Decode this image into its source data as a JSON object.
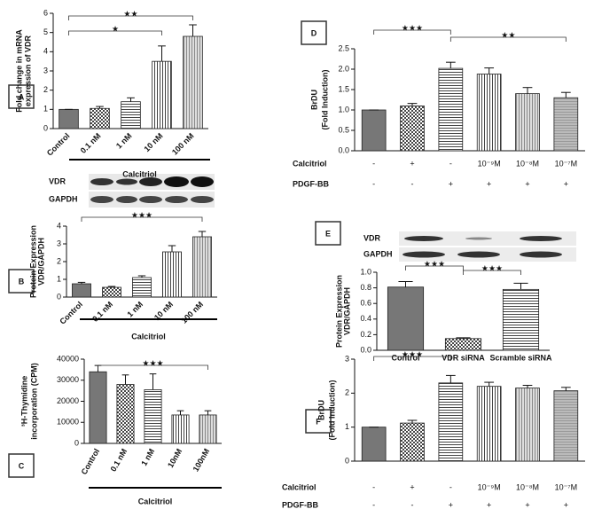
{
  "chart_data": [
    {
      "type": "bar",
      "label": "A",
      "ylabel": [
        "Fold change in mRNA",
        "expression of VDR"
      ],
      "xlabel": "Calcitriol",
      "categories": [
        "Control",
        "0.1 nM",
        "1 nM",
        "10 nM",
        "100 nM"
      ],
      "values": [
        1,
        1.05,
        1.4,
        3.5,
        4.8
      ],
      "errors": [
        0,
        0.1,
        0.2,
        0.8,
        0.6
      ],
      "ylim": [
        0,
        6
      ],
      "yticks": [
        0,
        1,
        2,
        3,
        4,
        5,
        6
      ],
      "annotations": [
        "★",
        "★★"
      ]
    },
    {
      "type": "bar",
      "label": "B",
      "blot_labels": [
        "VDR",
        "GAPDH"
      ],
      "ylabel": [
        "Protein Expression",
        "VDR/GAPDH"
      ],
      "xlabel": "Calcitriol",
      "categories": [
        "Control",
        "0.1 nM",
        "1 nM",
        "10 nM",
        "100 nM"
      ],
      "values": [
        0.75,
        0.55,
        1.1,
        2.55,
        3.4
      ],
      "errors": [
        0.08,
        0.05,
        0.1,
        0.35,
        0.3
      ],
      "ylim": [
        0,
        4
      ],
      "yticks": [
        0,
        1,
        2,
        3,
        4
      ],
      "annotations": [
        "★★★"
      ]
    },
    {
      "type": "bar",
      "label": "C",
      "ylabel": [
        "³H-Thymidine",
        "incorporation (CPM)"
      ],
      "xlabel": "Calcitriol",
      "categories": [
        "Control",
        "0.1 nM",
        "1 nM",
        "10nM",
        "100nM"
      ],
      "values": [
        34000,
        28000,
        25500,
        13500,
        13500
      ],
      "errors": [
        3000,
        4500,
        7500,
        2000,
        2000
      ],
      "ylim": [
        0,
        40000
      ],
      "yticks": [
        0,
        10000,
        20000,
        30000,
        40000
      ],
      "annotations": [
        "★★★"
      ]
    },
    {
      "type": "bar",
      "label": "D",
      "ylabel": [
        "BrDU",
        "(Fold Induction)"
      ],
      "categories": [
        null,
        null,
        null,
        null,
        null,
        null
      ],
      "values": [
        1,
        1.1,
        2.02,
        1.88,
        1.4,
        1.3
      ],
      "errors": [
        0,
        0.06,
        0.15,
        0.15,
        0.15,
        0.13
      ],
      "ylim": [
        0,
        2.5
      ],
      "yticks": [
        {
          "value": 0,
          "label": "0.0"
        },
        {
          "value": 0.5,
          "label": "0.5"
        },
        {
          "value": 1,
          "label": "1.0"
        },
        {
          "value": 1.5,
          "label": "1.5"
        },
        {
          "value": 2,
          "label": "2.0"
        },
        {
          "value": 2.5,
          "label": "2.5"
        }
      ],
      "treatments": [
        {
          "name": "Calcitriol",
          "values": [
            "-",
            "+",
            "-",
            "10⁻⁹M",
            "10⁻⁸M",
            "10⁻⁷M"
          ]
        },
        {
          "name": "PDGF-BB",
          "values": [
            "-",
            "-",
            "+",
            "+",
            "+",
            "+"
          ]
        }
      ],
      "annotations": [
        "★★★",
        "★★"
      ]
    },
    {
      "type": "bar",
      "label": "E",
      "blot_labels": [
        "VDR",
        "GAPDH"
      ],
      "ylabel": [
        "Protein Expression",
        "VDR/GAPDH"
      ],
      "categories": [
        "Control",
        "VDR siRNA",
        "Scramble siRNA"
      ],
      "values": [
        0.81,
        0.15,
        0.78
      ],
      "errors": [
        0.07,
        0.01,
        0.08
      ],
      "ylim": [
        0,
        1
      ],
      "yticks": [
        {
          "value": 0,
          "label": "0.0"
        },
        {
          "value": 0.2,
          "label": "0.2"
        },
        {
          "value": 0.4,
          "label": "0.4"
        },
        {
          "value": 0.6,
          "label": "0.6"
        },
        {
          "value": 0.8,
          "label": "0.8"
        },
        {
          "value": 1,
          "label": "1.0"
        }
      ],
      "annotations": [
        "★★★",
        "★★★"
      ]
    },
    {
      "type": "bar",
      "label": "F",
      "ylabel": [
        "BrDU",
        "(Fold Induction)"
      ],
      "categories": [
        null,
        null,
        null,
        null,
        null,
        null
      ],
      "values": [
        1,
        1.12,
        2.3,
        2.2,
        2.15,
        2.07
      ],
      "errors": [
        0,
        0.08,
        0.22,
        0.12,
        0.08,
        0.1
      ],
      "ylim": [
        0,
        3
      ],
      "yticks": [
        0,
        1,
        2,
        3
      ],
      "treatments": [
        {
          "name": "Calcitriol",
          "values": [
            "-",
            "+",
            "-",
            "10⁻⁹M",
            "10⁻⁸M",
            "10⁻⁷M"
          ]
        },
        {
          "name": "PDGF-BB",
          "values": [
            "-",
            "-",
            "+",
            "+",
            "+",
            "+"
          ]
        }
      ],
      "annotations": [
        "★★★"
      ]
    }
  ]
}
